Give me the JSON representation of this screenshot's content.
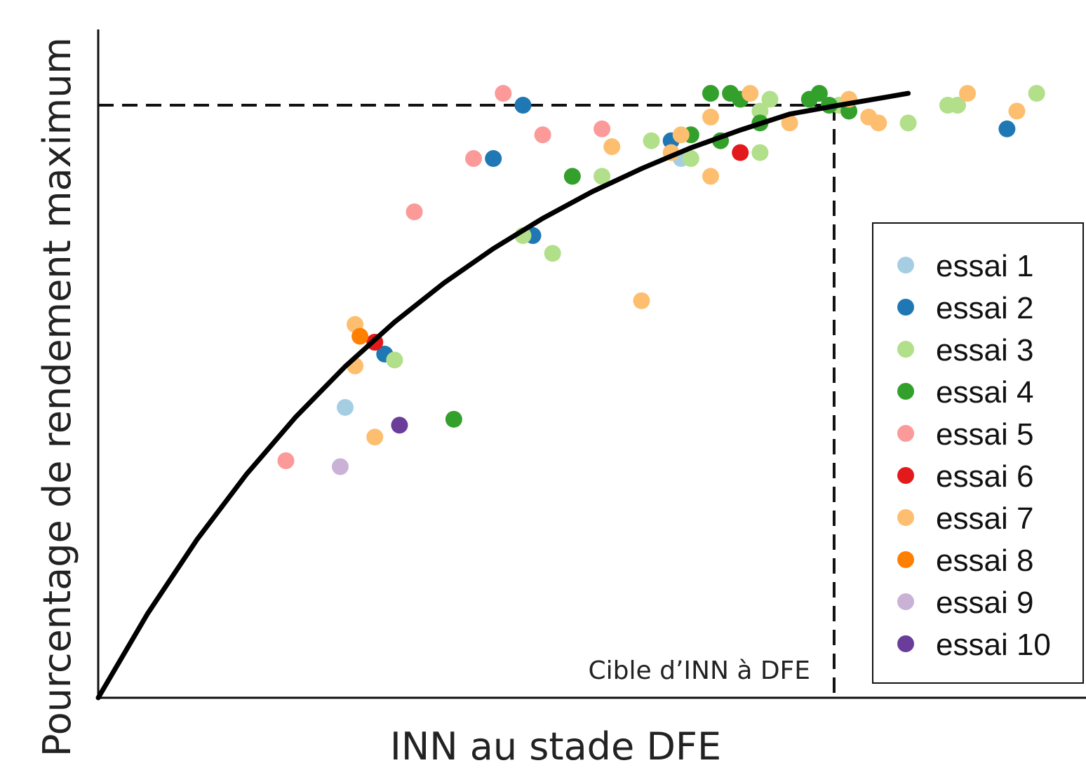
{
  "chart_data": {
    "type": "scatter",
    "xlabel": "INN au stade DFE",
    "ylabel": "Pourcentage de rendement maximum",
    "annotation": "Cible d’INN à DFE",
    "xlim": [
      0,
      1
    ],
    "ylim": [
      0,
      1
    ],
    "grid": false,
    "legend_position": "right",
    "curve": {
      "type": "line",
      "color": "#000000",
      "points": [
        [
          0.0,
          0.0
        ],
        [
          0.05,
          0.142
        ],
        [
          0.1,
          0.267
        ],
        [
          0.15,
          0.377
        ],
        [
          0.2,
          0.474
        ],
        [
          0.25,
          0.559
        ],
        [
          0.3,
          0.634
        ],
        [
          0.35,
          0.7
        ],
        [
          0.4,
          0.758
        ],
        [
          0.45,
          0.809
        ],
        [
          0.5,
          0.854
        ],
        [
          0.55,
          0.893
        ],
        [
          0.6,
          0.928
        ],
        [
          0.65,
          0.958
        ],
        [
          0.7,
          0.985
        ],
        [
          0.75,
          1.0
        ],
        [
          0.82,
          1.02
        ]
      ]
    },
    "plateau_y": 1.0,
    "target_x": 0.745,
    "series": [
      {
        "name": "essai 1",
        "color": "#a6cee3",
        "points": [
          [
            0.25,
            0.49
          ],
          [
            0.59,
            0.91
          ]
        ]
      },
      {
        "name": "essai 2",
        "color": "#1f78b4",
        "points": [
          [
            0.29,
            0.58
          ],
          [
            0.4,
            0.91
          ],
          [
            0.43,
            1.0
          ],
          [
            0.44,
            0.78
          ],
          [
            0.58,
            0.94
          ],
          [
            0.92,
            0.96
          ]
        ]
      },
      {
        "name": "essai 3",
        "color": "#b2df8a",
        "points": [
          [
            0.3,
            0.57
          ],
          [
            0.43,
            0.78
          ],
          [
            0.46,
            0.75
          ],
          [
            0.51,
            0.88
          ],
          [
            0.56,
            0.94
          ],
          [
            0.6,
            0.91
          ],
          [
            0.67,
            0.99
          ],
          [
            0.67,
            0.92
          ],
          [
            0.68,
            1.01
          ],
          [
            0.75,
            1.0
          ],
          [
            0.82,
            0.97
          ],
          [
            0.86,
            1.0
          ],
          [
            0.87,
            1.0
          ],
          [
            0.95,
            1.02
          ]
        ]
      },
      {
        "name": "essai 4",
        "color": "#33a02c",
        "points": [
          [
            0.36,
            0.47
          ],
          [
            0.48,
            0.88
          ],
          [
            0.6,
            0.95
          ],
          [
            0.63,
            0.94
          ],
          [
            0.62,
            1.02
          ],
          [
            0.64,
            1.02
          ],
          [
            0.65,
            1.01
          ],
          [
            0.67,
            0.97
          ],
          [
            0.72,
            1.01
          ],
          [
            0.73,
            1.02
          ],
          [
            0.74,
            1.0
          ],
          [
            0.76,
            0.99
          ]
        ]
      },
      {
        "name": "essai 5",
        "color": "#fb9a99",
        "points": [
          [
            0.19,
            0.4
          ],
          [
            0.32,
            0.82
          ],
          [
            0.38,
            0.91
          ],
          [
            0.41,
            1.02
          ],
          [
            0.45,
            0.95
          ],
          [
            0.51,
            0.96
          ]
        ]
      },
      {
        "name": "essai 6",
        "color": "#e31a1c",
        "points": [
          [
            0.28,
            0.6
          ],
          [
            0.65,
            0.92
          ]
        ]
      },
      {
        "name": "essai 7",
        "color": "#fdbf6f",
        "points": [
          [
            0.26,
            0.63
          ],
          [
            0.26,
            0.56
          ],
          [
            0.28,
            0.44
          ],
          [
            0.52,
            0.93
          ],
          [
            0.55,
            0.67
          ],
          [
            0.58,
            0.92
          ],
          [
            0.59,
            0.95
          ],
          [
            0.62,
            0.88
          ],
          [
            0.62,
            0.98
          ],
          [
            0.66,
            1.02
          ],
          [
            0.7,
            0.97
          ],
          [
            0.76,
            1.01
          ],
          [
            0.78,
            0.98
          ],
          [
            0.79,
            0.97
          ],
          [
            0.88,
            1.02
          ],
          [
            0.93,
            0.99
          ]
        ]
      },
      {
        "name": "essai 8",
        "color": "#ff7f00",
        "points": [
          [
            0.265,
            0.61
          ]
        ]
      },
      {
        "name": "essai 9",
        "color": "#cab2d6",
        "points": [
          [
            0.245,
            0.39
          ]
        ]
      },
      {
        "name": "essai 10",
        "color": "#6a3d9a",
        "points": [
          [
            0.305,
            0.46
          ]
        ]
      }
    ]
  }
}
